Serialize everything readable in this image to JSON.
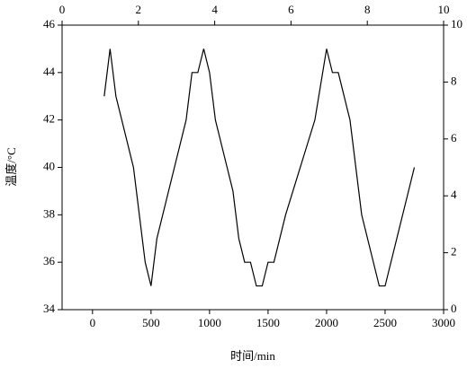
{
  "chart_data": {
    "type": "line",
    "xlabel": "时间/min",
    "ylabel": "温度/°C",
    "color": "#000000",
    "x": [
      100,
      150,
      200,
      350,
      450,
      500,
      550,
      650,
      800,
      850,
      900,
      950,
      1000,
      1050,
      1200,
      1250,
      1300,
      1350,
      1400,
      1450,
      1500,
      1550,
      1650,
      1900,
      2000,
      2050,
      2100,
      2200,
      2300,
      2450,
      2500,
      2650,
      2750
    ],
    "values": [
      43,
      45,
      43,
      40,
      36,
      35,
      37,
      39,
      42,
      44,
      44,
      45,
      44,
      42,
      39,
      37,
      36,
      36,
      35,
      35,
      36,
      36,
      38,
      42,
      45,
      44,
      44,
      42,
      38,
      35,
      35,
      38,
      40
    ],
    "xlim": [
      -260,
      3000
    ],
    "xticks": [
      0,
      500,
      1000,
      1500,
      2000,
      2500,
      3000
    ],
    "ylim": [
      34,
      46
    ],
    "yticks": [
      34,
      36,
      38,
      40,
      42,
      44,
      46
    ],
    "x2lim": [
      0,
      10
    ],
    "x2ticks": [
      0,
      2,
      4,
      6,
      8,
      10
    ],
    "y2lim": [
      0,
      10
    ],
    "y2ticks": [
      0,
      2,
      4,
      6,
      8,
      10
    ]
  }
}
